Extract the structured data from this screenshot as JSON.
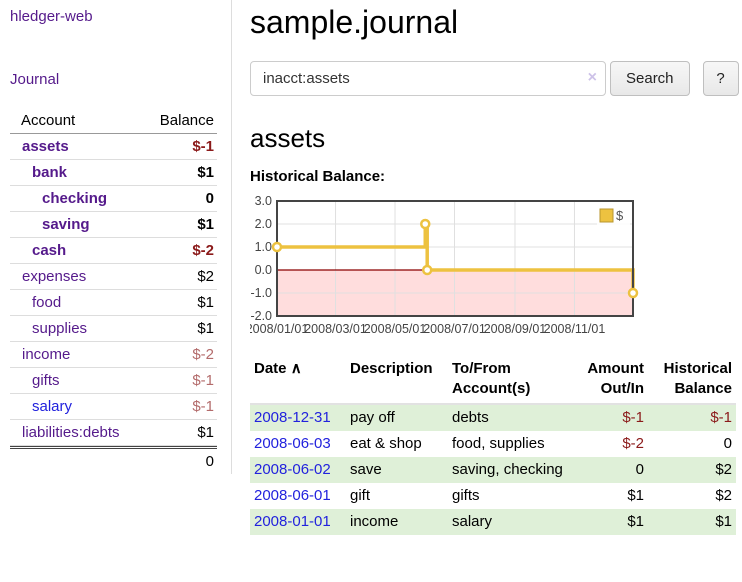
{
  "app": {
    "brand": "hledger-web",
    "nav_journal": "Journal"
  },
  "colors": {
    "link_purple": "#551a8b",
    "link_blue": "#2222dd",
    "negative_strong": "#8b1a1a",
    "negative_weak": "#b36b6b",
    "row_stripe_green": "#dff0d8",
    "series_gold": "#edc240",
    "chart_negative_fill": "#ffdddd",
    "chart_zero_line": "#8b0000"
  },
  "sidebar": {
    "headers": {
      "account": "Account",
      "balance": "Balance"
    },
    "accounts": [
      {
        "name": "assets",
        "balance": "$-1",
        "indent": 1,
        "bold": true,
        "negative": "strong"
      },
      {
        "name": "bank",
        "balance": "$1",
        "indent": 2,
        "bold": true,
        "negative": "none"
      },
      {
        "name": "checking",
        "balance": "0",
        "indent": 3,
        "bold": true,
        "negative": "none"
      },
      {
        "name": "saving",
        "balance": "$1",
        "indent": 3,
        "bold": true,
        "negative": "none"
      },
      {
        "name": "cash",
        "balance": "$-2",
        "indent": 2,
        "bold": true,
        "negative": "strong"
      },
      {
        "name": "expenses",
        "balance": "$2",
        "indent": 1,
        "bold": false,
        "negative": "none"
      },
      {
        "name": "food",
        "balance": "$1",
        "indent": 2,
        "bold": false,
        "negative": "none"
      },
      {
        "name": "supplies",
        "balance": "$1",
        "indent": 2,
        "bold": false,
        "negative": "none"
      },
      {
        "name": "income",
        "balance": "$-2",
        "indent": 1,
        "bold": false,
        "negative": "weak"
      },
      {
        "name": "gifts",
        "balance": "$-1",
        "indent": 2,
        "bold": false,
        "negative": "weak"
      },
      {
        "name": "salary",
        "balance": "$-1",
        "indent": 2,
        "bold": false,
        "negative": "weak",
        "unvisited": true
      },
      {
        "name": "liabilities:debts",
        "balance": "$1",
        "indent": 1,
        "bold": false,
        "negative": "none"
      }
    ],
    "total": "0"
  },
  "header": {
    "title": "sample.journal"
  },
  "search": {
    "value": "inacct:assets",
    "clear_icon": "×",
    "button_label": "Search",
    "help_label": "?"
  },
  "account_page": {
    "heading": "assets",
    "chart_title": "Historical Balance:"
  },
  "chart_data": {
    "type": "line",
    "step": true,
    "series": [
      {
        "name": "$",
        "color": "#edc240",
        "points": [
          [
            "2008-01-01",
            1
          ],
          [
            "2008-06-01",
            2
          ],
          [
            "2008-06-03",
            0
          ],
          [
            "2008-12-31",
            -1
          ]
        ]
      }
    ],
    "xlim": [
      "2008-01-01",
      "2008-12-31"
    ],
    "ylim": [
      -2,
      3
    ],
    "y_ticks": [
      {
        "label": "3.0",
        "value": 3
      },
      {
        "label": "2.0",
        "value": 2
      },
      {
        "label": "1.0",
        "value": 1
      },
      {
        "label": "0.0",
        "value": 0
      },
      {
        "label": "-1.0",
        "value": -1
      },
      {
        "label": "-2.0",
        "value": -2
      }
    ],
    "x_ticks": [
      {
        "label": "2008/01/01",
        "date": "2008-01-01"
      },
      {
        "label": "2008/03/01",
        "date": "2008-03-01"
      },
      {
        "label": "2008/05/01",
        "date": "2008-05-01"
      },
      {
        "label": "2008/07/01",
        "date": "2008-07-01"
      },
      {
        "label": "2008/09/01",
        "date": "2008-09-01"
      },
      {
        "label": "2008/11/01",
        "date": "2008-11-01"
      }
    ],
    "grid": true,
    "negative_fill": "#ffdddd",
    "zero_line_color": "#8b0000",
    "legend": {
      "label": "$",
      "position": "top-right"
    }
  },
  "register": {
    "headers": {
      "date": "Date",
      "sort_icon": "∧",
      "description": "Description",
      "accounts": "To/From Account(s)",
      "amount": "Amount Out/In",
      "balance": "Historical Balance"
    },
    "rows": [
      {
        "date": "2008-12-31",
        "description": "pay off",
        "accounts": "debts",
        "amount": "$-1",
        "balance": "$-1",
        "amount_negative": true,
        "balance_negative": true
      },
      {
        "date": "2008-06-03",
        "description": "eat & shop",
        "accounts": "food, supplies",
        "amount": "$-2",
        "balance": "0",
        "amount_negative": true,
        "balance_negative": false
      },
      {
        "date": "2008-06-02",
        "description": "save",
        "accounts": "saving, checking",
        "amount": "0",
        "balance": "$2",
        "amount_negative": false,
        "balance_negative": false
      },
      {
        "date": "2008-06-01",
        "description": "gift",
        "accounts": "gifts",
        "amount": "$1",
        "balance": "$2",
        "amount_negative": false,
        "balance_negative": false
      },
      {
        "date": "2008-01-01",
        "description": "income",
        "accounts": "salary",
        "amount": "$1",
        "balance": "$1",
        "amount_negative": false,
        "balance_negative": false
      }
    ]
  }
}
